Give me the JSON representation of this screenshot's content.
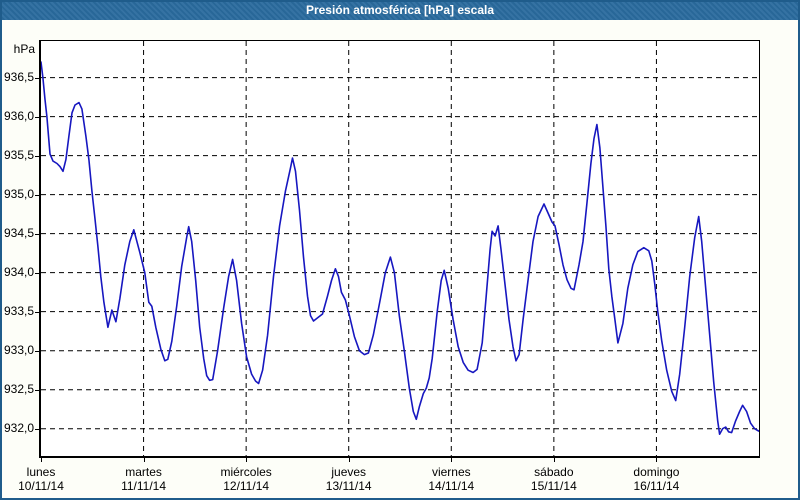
{
  "window": {
    "title": "Presión atmosférica [hPa] escala"
  },
  "colors": {
    "titlebar_bg": "#2a6b9e",
    "titlebar_text": "#ffffff",
    "window_border": "#1f5c8b",
    "page_bg": "#fdfef8",
    "plot_bg": "#ffffff",
    "grid": "#000000",
    "axis": "#000000",
    "line": "#1717c0",
    "text": "#000000"
  },
  "chart_data": {
    "type": "line",
    "title": "Presión atmosférica [hPa] escala",
    "ylabel": "hPa",
    "xlabel": "",
    "grid": true,
    "grid_style": "dashed",
    "legend": false,
    "ylim": [
      931.65,
      936.97
    ],
    "xlim_days": [
      0,
      7
    ],
    "y_ticks": [
      {
        "value": 936.5,
        "label": "936,5"
      },
      {
        "value": 936.0,
        "label": "936,0"
      },
      {
        "value": 935.5,
        "label": "935,5"
      },
      {
        "value": 935.0,
        "label": "935,0"
      },
      {
        "value": 934.5,
        "label": "934,5"
      },
      {
        "value": 934.0,
        "label": "934,0"
      },
      {
        "value": 933.5,
        "label": "933,5"
      },
      {
        "value": 933.0,
        "label": "933,0"
      },
      {
        "value": 932.5,
        "label": "932,5"
      },
      {
        "value": 932.0,
        "label": "932,0"
      }
    ],
    "x_days": [
      {
        "day": 0,
        "name": "lunes",
        "date": "10/11/14"
      },
      {
        "day": 1,
        "name": "martes",
        "date": "11/11/14"
      },
      {
        "day": 2,
        "name": "miércoles",
        "date": "12/11/14"
      },
      {
        "day": 3,
        "name": "jueves",
        "date": "13/11/14"
      },
      {
        "day": 4,
        "name": "viernes",
        "date": "14/11/14"
      },
      {
        "day": 5,
        "name": "sábado",
        "date": "15/11/14"
      },
      {
        "day": 6,
        "name": "domingo",
        "date": "16/11/14"
      }
    ],
    "series": [
      {
        "name": "Presión atmosférica [hPa]",
        "color": "#1717c0",
        "points": [
          [
            0.0,
            936.7
          ],
          [
            0.019,
            936.5
          ],
          [
            0.039,
            936.22
          ],
          [
            0.058,
            936.0
          ],
          [
            0.088,
            935.52
          ],
          [
            0.117,
            935.43
          ],
          [
            0.156,
            935.4
          ],
          [
            0.185,
            935.36
          ],
          [
            0.214,
            935.3
          ],
          [
            0.243,
            935.45
          ],
          [
            0.272,
            935.75
          ],
          [
            0.302,
            936.05
          ],
          [
            0.331,
            936.15
          ],
          [
            0.37,
            936.18
          ],
          [
            0.399,
            936.1
          ],
          [
            0.438,
            935.75
          ],
          [
            0.467,
            935.45
          ],
          [
            0.496,
            935.05
          ],
          [
            0.525,
            934.7
          ],
          [
            0.554,
            934.35
          ],
          [
            0.583,
            933.95
          ],
          [
            0.613,
            933.62
          ],
          [
            0.652,
            933.3
          ],
          [
            0.691,
            933.52
          ],
          [
            0.73,
            933.37
          ],
          [
            0.769,
            933.67
          ],
          [
            0.817,
            934.1
          ],
          [
            0.866,
            934.4
          ],
          [
            0.905,
            934.55
          ],
          [
            0.963,
            934.26
          ],
          [
            1.012,
            934.0
          ],
          [
            1.051,
            933.62
          ],
          [
            1.08,
            933.57
          ],
          [
            1.119,
            933.3
          ],
          [
            1.168,
            933.02
          ],
          [
            1.207,
            932.87
          ],
          [
            1.236,
            932.89
          ],
          [
            1.275,
            933.12
          ],
          [
            1.323,
            933.57
          ],
          [
            1.372,
            934.08
          ],
          [
            1.421,
            934.46
          ],
          [
            1.44,
            934.59
          ],
          [
            1.469,
            934.4
          ],
          [
            1.508,
            933.9
          ],
          [
            1.547,
            933.3
          ],
          [
            1.586,
            932.9
          ],
          [
            1.615,
            932.68
          ],
          [
            1.644,
            932.62
          ],
          [
            1.674,
            932.63
          ],
          [
            1.722,
            933.0
          ],
          [
            1.781,
            933.55
          ],
          [
            1.829,
            933.95
          ],
          [
            1.868,
            934.17
          ],
          [
            1.907,
            933.9
          ],
          [
            1.956,
            933.35
          ],
          [
            2.004,
            932.92
          ],
          [
            2.053,
            932.7
          ],
          [
            2.092,
            932.61
          ],
          [
            2.121,
            932.58
          ],
          [
            2.16,
            932.75
          ],
          [
            2.209,
            933.2
          ],
          [
            2.267,
            933.95
          ],
          [
            2.326,
            934.6
          ],
          [
            2.384,
            935.05
          ],
          [
            2.433,
            935.35
          ],
          [
            2.452,
            935.47
          ],
          [
            2.481,
            935.3
          ],
          [
            2.52,
            934.8
          ],
          [
            2.559,
            934.2
          ],
          [
            2.598,
            933.7
          ],
          [
            2.627,
            933.45
          ],
          [
            2.657,
            933.38
          ],
          [
            2.696,
            933.42
          ],
          [
            2.744,
            933.47
          ],
          [
            2.793,
            933.7
          ],
          [
            2.832,
            933.9
          ],
          [
            2.87,
            934.05
          ],
          [
            2.9,
            933.95
          ],
          [
            2.929,
            933.75
          ],
          [
            2.968,
            933.65
          ],
          [
            3.007,
            933.45
          ],
          [
            3.055,
            933.18
          ],
          [
            3.104,
            933.0
          ],
          [
            3.153,
            932.95
          ],
          [
            3.192,
            932.97
          ],
          [
            3.24,
            933.2
          ],
          [
            3.299,
            933.6
          ],
          [
            3.357,
            934.0
          ],
          [
            3.406,
            934.2
          ],
          [
            3.445,
            934.0
          ],
          [
            3.493,
            933.45
          ],
          [
            3.542,
            933.0
          ],
          [
            3.591,
            932.52
          ],
          [
            3.63,
            932.22
          ],
          [
            3.659,
            932.12
          ],
          [
            3.688,
            932.28
          ],
          [
            3.727,
            932.45
          ],
          [
            3.756,
            932.52
          ],
          [
            3.785,
            932.65
          ],
          [
            3.814,
            932.9
          ],
          [
            3.863,
            933.5
          ],
          [
            3.902,
            933.9
          ],
          [
            3.931,
            934.03
          ],
          [
            3.97,
            933.8
          ],
          [
            4.018,
            933.4
          ],
          [
            4.067,
            933.05
          ],
          [
            4.116,
            932.85
          ],
          [
            4.164,
            932.75
          ],
          [
            4.213,
            932.72
          ],
          [
            4.252,
            932.76
          ],
          [
            4.301,
            933.1
          ],
          [
            4.34,
            933.7
          ],
          [
            4.378,
            934.3
          ],
          [
            4.398,
            934.53
          ],
          [
            4.427,
            934.47
          ],
          [
            4.456,
            934.6
          ],
          [
            4.485,
            934.3
          ],
          [
            4.524,
            933.85
          ],
          [
            4.563,
            933.4
          ],
          [
            4.602,
            933.05
          ],
          [
            4.631,
            932.87
          ],
          [
            4.661,
            932.95
          ],
          [
            4.7,
            933.4
          ],
          [
            4.748,
            933.9
          ],
          [
            4.797,
            934.4
          ],
          [
            4.846,
            934.72
          ],
          [
            4.904,
            934.88
          ],
          [
            4.952,
            934.74
          ],
          [
            4.982,
            934.65
          ],
          [
            5.011,
            934.6
          ],
          [
            5.05,
            934.36
          ],
          [
            5.089,
            934.1
          ],
          [
            5.128,
            933.91
          ],
          [
            5.167,
            933.8
          ],
          [
            5.196,
            933.78
          ],
          [
            5.245,
            934.1
          ],
          [
            5.284,
            934.4
          ],
          [
            5.323,
            934.9
          ],
          [
            5.361,
            935.4
          ],
          [
            5.391,
            935.72
          ],
          [
            5.42,
            935.9
          ],
          [
            5.449,
            935.6
          ],
          [
            5.478,
            935.1
          ],
          [
            5.507,
            934.6
          ],
          [
            5.536,
            934.05
          ],
          [
            5.565,
            933.7
          ],
          [
            5.595,
            933.4
          ],
          [
            5.624,
            933.1
          ],
          [
            5.673,
            933.35
          ],
          [
            5.721,
            933.8
          ],
          [
            5.77,
            934.1
          ],
          [
            5.818,
            934.27
          ],
          [
            5.877,
            934.32
          ],
          [
            5.926,
            934.28
          ],
          [
            5.955,
            934.15
          ],
          [
            5.984,
            933.85
          ],
          [
            6.013,
            933.5
          ],
          [
            6.052,
            933.12
          ],
          [
            6.1,
            932.75
          ],
          [
            6.149,
            932.48
          ],
          [
            6.188,
            932.36
          ],
          [
            6.227,
            932.7
          ],
          [
            6.276,
            933.3
          ],
          [
            6.324,
            933.95
          ],
          [
            6.373,
            934.45
          ],
          [
            6.412,
            934.72
          ],
          [
            6.441,
            934.4
          ],
          [
            6.48,
            933.8
          ],
          [
            6.519,
            933.2
          ],
          [
            6.558,
            932.6
          ],
          [
            6.597,
            932.1
          ],
          [
            6.616,
            931.93
          ],
          [
            6.645,
            932.0
          ],
          [
            6.675,
            932.02
          ],
          [
            6.704,
            931.96
          ],
          [
            6.733,
            931.95
          ],
          [
            6.772,
            932.1
          ],
          [
            6.811,
            932.22
          ],
          [
            6.84,
            932.3
          ],
          [
            6.879,
            932.22
          ],
          [
            6.918,
            932.07
          ],
          [
            6.957,
            932.0
          ],
          [
            6.996,
            931.97
          ]
        ]
      }
    ]
  }
}
